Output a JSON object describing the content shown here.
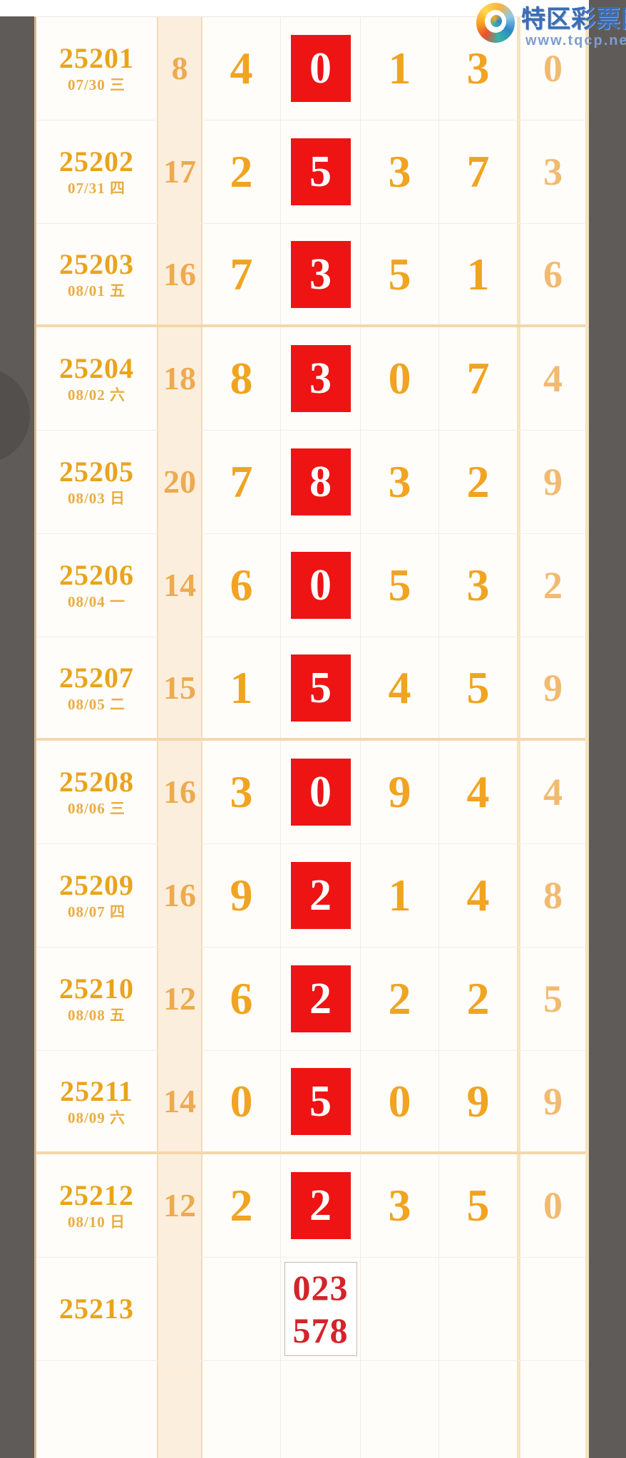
{
  "logo": {
    "title": "特区彩票网",
    "url": "www.tqcp.net"
  },
  "table": {
    "group_end_periods": [
      "25203",
      "25207",
      "25211"
    ],
    "rows": [
      {
        "period": "25201",
        "date": "07/30",
        "weekday": "三",
        "sum": "8",
        "n1": "4",
        "n2": "0",
        "n3": "1",
        "n4": "3",
        "extra": "0"
      },
      {
        "period": "25202",
        "date": "07/31",
        "weekday": "四",
        "sum": "17",
        "n1": "2",
        "n2": "5",
        "n3": "3",
        "n4": "7",
        "extra": "3"
      },
      {
        "period": "25203",
        "date": "08/01",
        "weekday": "五",
        "sum": "16",
        "n1": "7",
        "n2": "3",
        "n3": "5",
        "n4": "1",
        "extra": "6"
      },
      {
        "period": "25204",
        "date": "08/02",
        "weekday": "六",
        "sum": "18",
        "n1": "8",
        "n2": "3",
        "n3": "0",
        "n4": "7",
        "extra": "4"
      },
      {
        "period": "25205",
        "date": "08/03",
        "weekday": "日",
        "sum": "20",
        "n1": "7",
        "n2": "8",
        "n3": "3",
        "n4": "2",
        "extra": "9"
      },
      {
        "period": "25206",
        "date": "08/04",
        "weekday": "一",
        "sum": "14",
        "n1": "6",
        "n2": "0",
        "n3": "5",
        "n4": "3",
        "extra": "2"
      },
      {
        "period": "25207",
        "date": "08/05",
        "weekday": "二",
        "sum": "15",
        "n1": "1",
        "n2": "5",
        "n3": "4",
        "n4": "5",
        "extra": "9"
      },
      {
        "period": "25208",
        "date": "08/06",
        "weekday": "三",
        "sum": "16",
        "n1": "3",
        "n2": "0",
        "n3": "9",
        "n4": "4",
        "extra": "4"
      },
      {
        "period": "25209",
        "date": "08/07",
        "weekday": "四",
        "sum": "16",
        "n1": "9",
        "n2": "2",
        "n3": "1",
        "n4": "4",
        "extra": "8"
      },
      {
        "period": "25210",
        "date": "08/08",
        "weekday": "五",
        "sum": "12",
        "n1": "6",
        "n2": "2",
        "n3": "2",
        "n4": "2",
        "extra": "5"
      },
      {
        "period": "25211",
        "date": "08/09",
        "weekday": "六",
        "sum": "14",
        "n1": "0",
        "n2": "5",
        "n3": "0",
        "n4": "9",
        "extra": "9"
      },
      {
        "period": "25212",
        "date": "08/10",
        "weekday": "日",
        "sum": "12",
        "n1": "2",
        "n2": "2",
        "n3": "3",
        "n4": "5",
        "extra": "0"
      }
    ],
    "pending_row": {
      "period": "25213",
      "box_lines": [
        "023",
        "578"
      ]
    }
  },
  "colors": {
    "gold_digit": "#f0a421",
    "red_highlight": "#ee1414",
    "tip_red": "#d32429",
    "sum_bg": "#fceedd",
    "group_border": "#f3d8ad",
    "logo_blue": "#3a6db6",
    "gutter_gray": "#5e5b58"
  }
}
